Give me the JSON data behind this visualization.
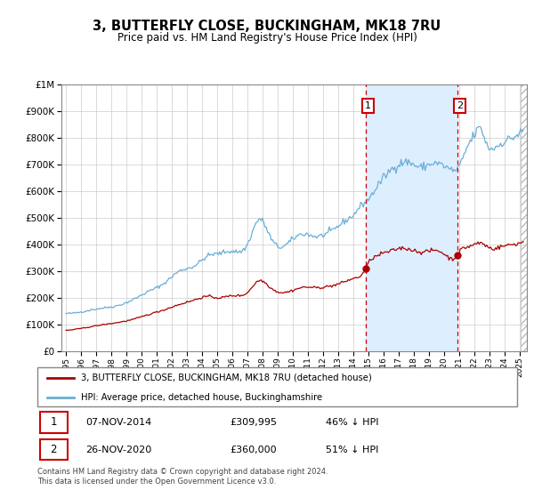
{
  "title": "3, BUTTERFLY CLOSE, BUCKINGHAM, MK18 7RU",
  "subtitle": "Price paid vs. HM Land Registry's House Price Index (HPI)",
  "hpi_label": "HPI: Average price, detached house, Buckinghamshire",
  "property_label": "3, BUTTERFLY CLOSE, BUCKINGHAM, MK18 7RU (detached house)",
  "transaction1": {
    "label": "1",
    "date": "07-NOV-2014",
    "price": "£309,995",
    "pct": "46% ↓ HPI",
    "year": 2014.84
  },
  "transaction2": {
    "label": "2",
    "date": "26-NOV-2020",
    "price": "£360,000",
    "pct": "51% ↓ HPI",
    "year": 2020.9
  },
  "hpi_line_color": "#6aaed6",
  "property_color": "#aa0000",
  "shade_color": "#ddeeff",
  "footnote": "Contains HM Land Registry data © Crown copyright and database right 2024.\nThis data is licensed under the Open Government Licence v3.0.",
  "ylim": [
    0,
    1000000
  ],
  "xlim": [
    1994.7,
    2025.5
  ],
  "bg_color": "#ffffff",
  "grid_color": "#cccccc"
}
